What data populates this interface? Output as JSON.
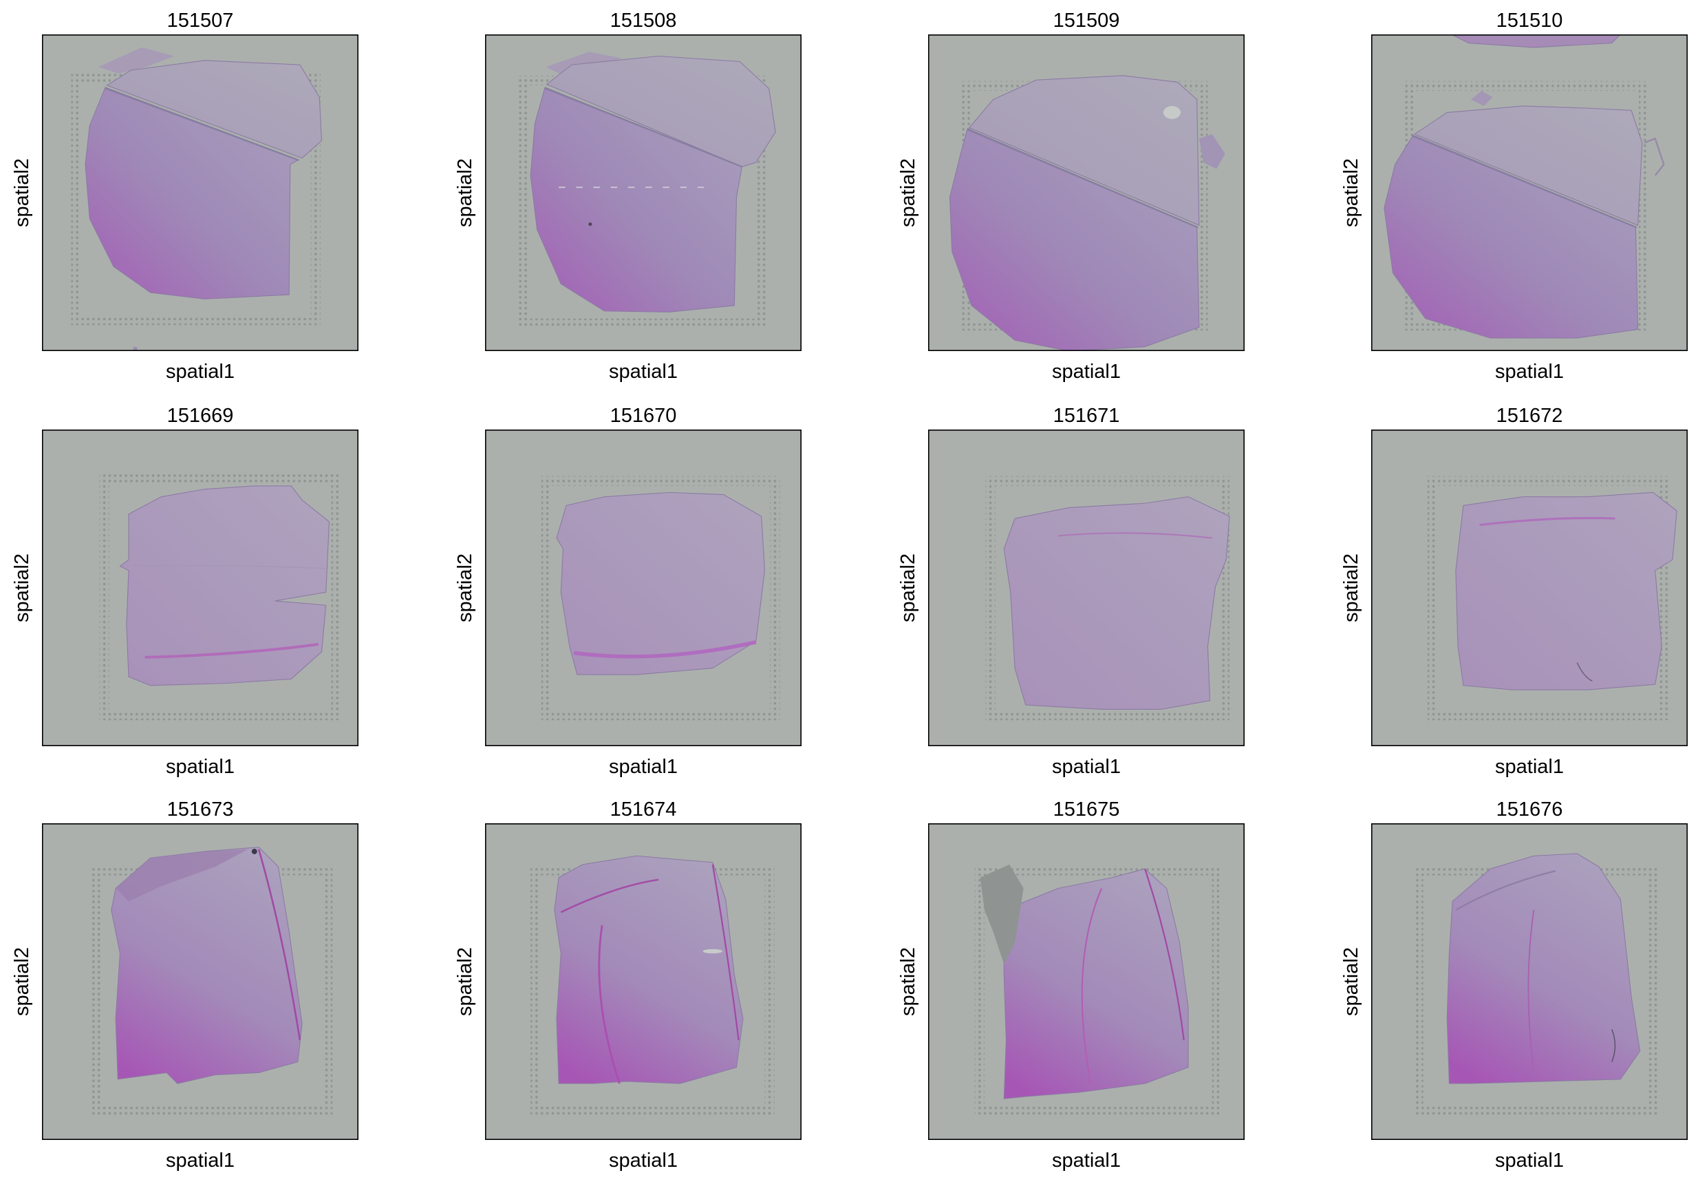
{
  "chart_data": [
    {
      "type": "heatmap",
      "title": "151507",
      "xlabel": "spatial1",
      "ylabel": "spatial2",
      "grid": false
    },
    {
      "type": "heatmap",
      "title": "151508",
      "xlabel": "spatial1",
      "ylabel": "spatial2",
      "grid": false
    },
    {
      "type": "heatmap",
      "title": "151509",
      "xlabel": "spatial1",
      "ylabel": "spatial2",
      "grid": false
    },
    {
      "type": "heatmap",
      "title": "151510",
      "xlabel": "spatial1",
      "ylabel": "spatial2",
      "grid": false
    },
    {
      "type": "heatmap",
      "title": "151669",
      "xlabel": "spatial1",
      "ylabel": "spatial2",
      "grid": false
    },
    {
      "type": "heatmap",
      "title": "151670",
      "xlabel": "spatial1",
      "ylabel": "spatial2",
      "grid": false
    },
    {
      "type": "heatmap",
      "title": "151671",
      "xlabel": "spatial1",
      "ylabel": "spatial2",
      "grid": false
    },
    {
      "type": "heatmap",
      "title": "151672",
      "xlabel": "spatial1",
      "ylabel": "spatial2",
      "grid": false
    },
    {
      "type": "heatmap",
      "title": "151673",
      "xlabel": "spatial1",
      "ylabel": "spatial2",
      "grid": false
    },
    {
      "type": "heatmap",
      "title": "151674",
      "xlabel": "spatial1",
      "ylabel": "spatial2",
      "grid": false
    },
    {
      "type": "heatmap",
      "title": "151675",
      "xlabel": "spatial1",
      "ylabel": "spatial2",
      "grid": false
    },
    {
      "type": "heatmap",
      "title": "151676",
      "xlabel": "spatial1",
      "ylabel": "spatial2",
      "grid": false
    }
  ]
}
